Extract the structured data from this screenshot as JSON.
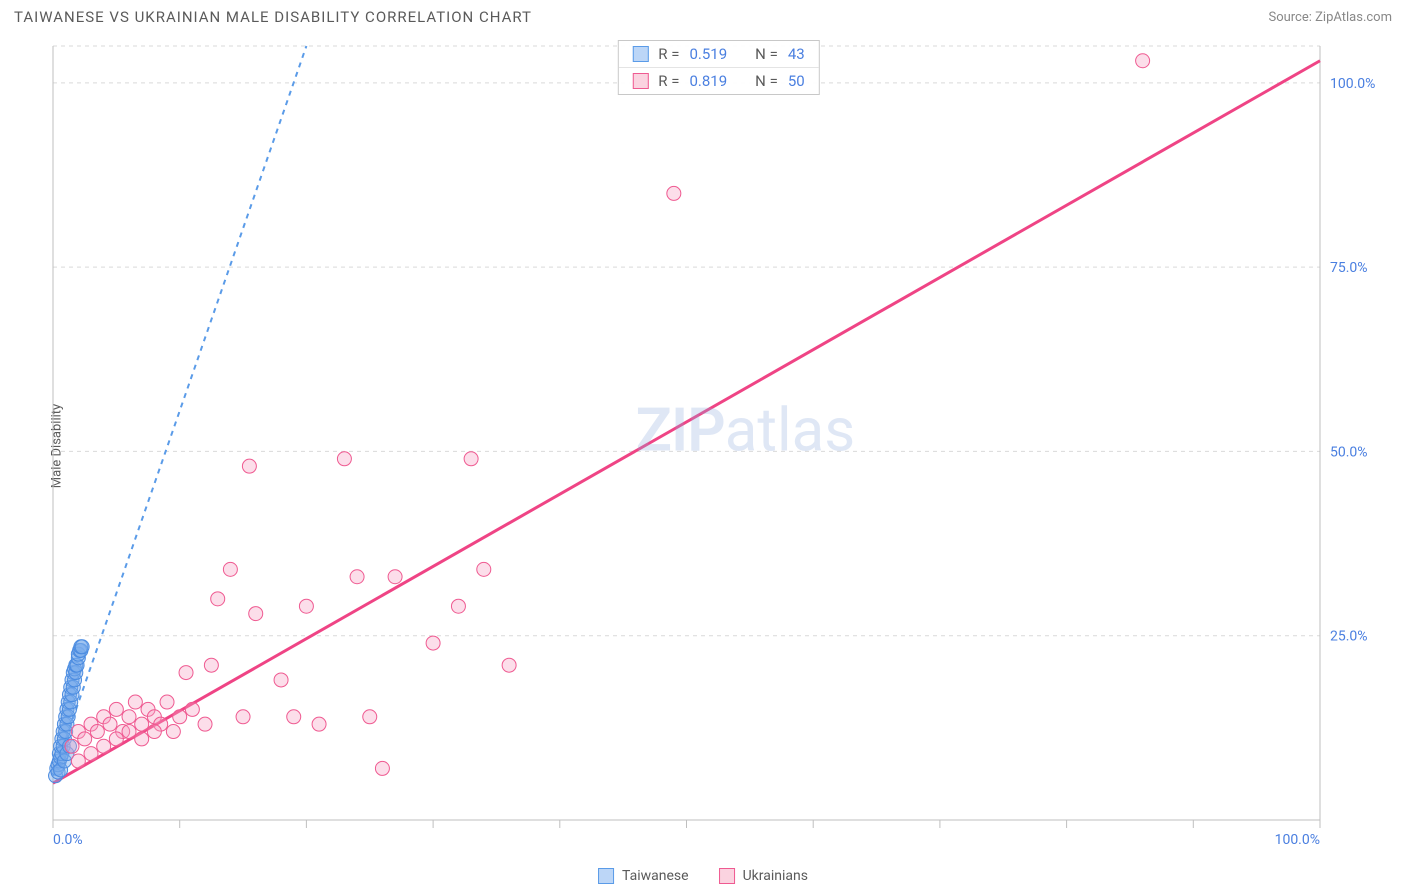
{
  "header": {
    "title": "TAIWANESE VS UKRAINIAN MALE DISABILITY CORRELATION CHART",
    "source": "Source: ZipAtlas.com"
  },
  "y_axis_label": "Male Disability",
  "watermark": {
    "part1": "ZIP",
    "part2": "atlas"
  },
  "legend_top": {
    "rows": [
      {
        "swatch_fill": "#bcd6f7",
        "swatch_border": "#5a9be8",
        "r_label": "R =",
        "r_value": "0.519",
        "n_label": "N =",
        "n_value": "43"
      },
      {
        "swatch_fill": "#fbd3e0",
        "swatch_border": "#ef5a91",
        "r_label": "R =",
        "r_value": "0.819",
        "n_label": "N =",
        "n_value": "50"
      }
    ]
  },
  "legend_bottom": {
    "items": [
      {
        "swatch_fill": "#bcd6f7",
        "swatch_border": "#5a9be8",
        "label": "Taiwanese"
      },
      {
        "swatch_fill": "#fbd3e0",
        "swatch_border": "#ef5a91",
        "label": "Ukrainians"
      }
    ]
  },
  "chart": {
    "type": "scatter",
    "background_color": "#ffffff",
    "grid_color": "#d9d9d9",
    "axis_color": "#bfbfbf",
    "tick_label_color": "#4a7fe0",
    "xlim": [
      0,
      100
    ],
    "ylim": [
      0,
      105
    ],
    "x_ticks": [
      0,
      10,
      20,
      30,
      40,
      50,
      60,
      70,
      80,
      90,
      100
    ],
    "x_tick_labels": {
      "0": "0.0%",
      "100": "100.0%"
    },
    "y_gridlines": [
      25,
      50,
      75,
      100,
      105
    ],
    "y_tick_labels": {
      "25": "25.0%",
      "50": "50.0%",
      "75": "75.0%",
      "100": "100.0%"
    },
    "marker_radius": 7,
    "series": [
      {
        "name": "Taiwanese",
        "point_fill": "rgba(120,170,235,0.45)",
        "point_stroke": "#4a8be0",
        "trend_color": "#5a9be8",
        "trend_dash": true,
        "trend": {
          "x1": 0,
          "y1": 6,
          "x2": 20,
          "y2": 105
        },
        "points": [
          [
            0.2,
            6
          ],
          [
            0.3,
            7
          ],
          [
            0.4,
            7.5
          ],
          [
            0.5,
            8
          ],
          [
            0.5,
            9
          ],
          [
            0.6,
            8.5
          ],
          [
            0.6,
            10
          ],
          [
            0.7,
            9
          ],
          [
            0.7,
            11
          ],
          [
            0.8,
            10
          ],
          [
            0.8,
            12
          ],
          [
            0.9,
            11
          ],
          [
            0.9,
            13
          ],
          [
            1.0,
            12
          ],
          [
            1.0,
            14
          ],
          [
            1.1,
            13
          ],
          [
            1.1,
            15
          ],
          [
            1.2,
            14
          ],
          [
            1.2,
            16
          ],
          [
            1.3,
            15
          ],
          [
            1.3,
            17
          ],
          [
            1.4,
            16
          ],
          [
            1.4,
            18
          ],
          [
            1.5,
            17
          ],
          [
            1.5,
            19
          ],
          [
            1.6,
            18
          ],
          [
            1.6,
            20
          ],
          [
            1.7,
            19
          ],
          [
            1.7,
            20.5
          ],
          [
            1.8,
            20
          ],
          [
            1.8,
            21
          ],
          [
            1.9,
            21
          ],
          [
            2.0,
            22
          ],
          [
            2.0,
            22.5
          ],
          [
            2.1,
            23
          ],
          [
            2.2,
            23
          ],
          [
            2.2,
            23.5
          ],
          [
            2.3,
            23.5
          ],
          [
            0.4,
            6.5
          ],
          [
            0.6,
            6.8
          ],
          [
            0.9,
            8
          ],
          [
            1.1,
            9
          ],
          [
            1.3,
            10
          ]
        ]
      },
      {
        "name": "Ukrainians",
        "point_fill": "rgba(245,160,195,0.35)",
        "point_stroke": "#ef5a91",
        "trend_color": "#ef4485",
        "trend_dash": false,
        "trend": {
          "x1": 0,
          "y1": 5,
          "x2": 100,
          "y2": 103
        },
        "points": [
          [
            1.5,
            10
          ],
          [
            2,
            12
          ],
          [
            2.5,
            11
          ],
          [
            3,
            13
          ],
          [
            3.5,
            12
          ],
          [
            4,
            14
          ],
          [
            4.5,
            13
          ],
          [
            5,
            15
          ],
          [
            5.5,
            12
          ],
          [
            6,
            14
          ],
          [
            6.5,
            16
          ],
          [
            7,
            13
          ],
          [
            7.5,
            15
          ],
          [
            8,
            14
          ],
          [
            8.5,
            13
          ],
          [
            9,
            16
          ],
          [
            9.5,
            12
          ],
          [
            10,
            14
          ],
          [
            10.5,
            20
          ],
          [
            11,
            15
          ],
          [
            12,
            13
          ],
          [
            12.5,
            21
          ],
          [
            13,
            30
          ],
          [
            14,
            34
          ],
          [
            15,
            14
          ],
          [
            15.5,
            48
          ],
          [
            16,
            28
          ],
          [
            18,
            19
          ],
          [
            19,
            14
          ],
          [
            20,
            29
          ],
          [
            21,
            13
          ],
          [
            23,
            49
          ],
          [
            24,
            33
          ],
          [
            25,
            14
          ],
          [
            26,
            7
          ],
          [
            27,
            33
          ],
          [
            30,
            24
          ],
          [
            32,
            29
          ],
          [
            33,
            49
          ],
          [
            34,
            34
          ],
          [
            36,
            21
          ],
          [
            49,
            85
          ],
          [
            86,
            103
          ],
          [
            2,
            8
          ],
          [
            3,
            9
          ],
          [
            4,
            10
          ],
          [
            5,
            11
          ],
          [
            6,
            12
          ],
          [
            7,
            11
          ],
          [
            8,
            12
          ]
        ]
      }
    ]
  }
}
